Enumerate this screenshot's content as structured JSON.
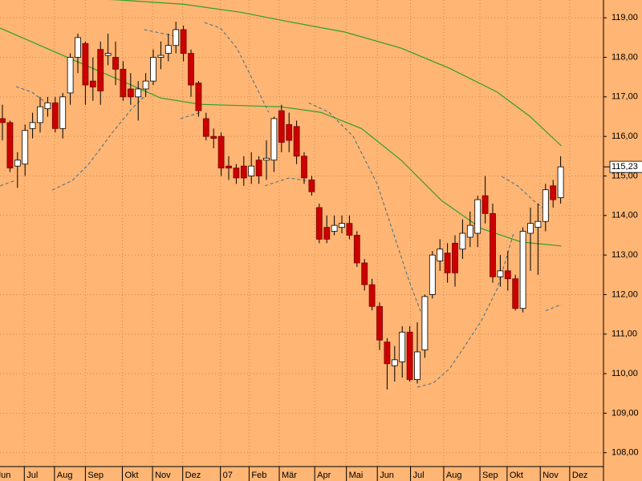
{
  "chart_data": {
    "type": "candlestick",
    "open": [
      116.45,
      116.35,
      115.25,
      115.3,
      116.2,
      116.35,
      116.7,
      116.85,
      116.2,
      117.1,
      118.0,
      118.35,
      117.4,
      118.2,
      118.05,
      118.0,
      117.7,
      117.2,
      117.0,
      117.2,
      117.4,
      118.0,
      118.1,
      118.3,
      118.7,
      118.1,
      117.35,
      116.45,
      116.0,
      116.0,
      115.25,
      115.2,
      115.25,
      115.0,
      115.4,
      115.4,
      115.4,
      116.65,
      116.3,
      116.25,
      115.5,
      114.9,
      114.2,
      113.7,
      113.6,
      113.7,
      113.8,
      113.5,
      112.8,
      112.25,
      111.7,
      110.8,
      110.2,
      110.3,
      111.05,
      109.85,
      110.6,
      112.0,
      112.85,
      113.05,
      113.3,
      113.15,
      113.45,
      113.55,
      114.5,
      114.05,
      112.45,
      112.6,
      112.4,
      111.65,
      113.55,
      113.7,
      113.85,
      114.75,
      114.45
    ],
    "high": [
      116.8,
      116.4,
      115.6,
      116.3,
      116.6,
      117.0,
      117.0,
      117.0,
      117.1,
      118.1,
      118.6,
      118.4,
      118.0,
      118.4,
      118.6,
      118.4,
      117.9,
      117.6,
      117.4,
      117.6,
      118.2,
      118.4,
      118.6,
      118.9,
      118.8,
      118.2,
      117.4,
      116.6,
      116.2,
      116.1,
      115.5,
      115.3,
      115.5,
      115.6,
      115.5,
      115.9,
      116.5,
      116.8,
      116.6,
      116.4,
      115.6,
      115.0,
      114.3,
      114.0,
      114.0,
      114.0,
      114.0,
      113.6,
      112.9,
      112.4,
      111.8,
      110.9,
      110.7,
      111.2,
      111.2,
      111.3,
      112.0,
      113.1,
      113.4,
      113.3,
      113.5,
      113.9,
      114.1,
      114.5,
      115.0,
      114.3,
      113.0,
      113.1,
      112.5,
      113.7,
      114.2,
      114.3,
      114.8,
      114.9,
      115.5
    ],
    "low": [
      115.9,
      115.1,
      114.7,
      115.0,
      115.95,
      116.1,
      116.5,
      116.1,
      115.95,
      116.8,
      117.6,
      116.8,
      116.9,
      116.8,
      117.8,
      117.3,
      116.9,
      116.8,
      116.4,
      117.0,
      117.3,
      117.7,
      117.9,
      118.1,
      117.9,
      117.0,
      116.5,
      115.9,
      115.7,
      115.0,
      114.9,
      114.8,
      114.75,
      114.8,
      114.8,
      114.9,
      115.1,
      115.6,
      115.6,
      115.3,
      114.8,
      114.5,
      113.3,
      113.3,
      113.5,
      113.55,
      113.4,
      112.7,
      112.1,
      111.6,
      110.6,
      109.6,
      109.8,
      109.9,
      109.8,
      109.75,
      110.4,
      111.9,
      112.6,
      112.3,
      112.2,
      112.9,
      113.2,
      113.2,
      113.8,
      112.3,
      112.2,
      112.1,
      111.6,
      111.55,
      112.6,
      112.5,
      113.6,
      114.2,
      114.3
    ],
    "close": [
      116.35,
      115.2,
      115.4,
      116.15,
      116.35,
      116.75,
      116.85,
      116.2,
      117.0,
      118.0,
      118.5,
      117.3,
      117.25,
      117.15,
      118.1,
      117.7,
      117.0,
      117.0,
      117.2,
      117.4,
      118.0,
      118.05,
      118.3,
      118.7,
      118.1,
      117.3,
      116.65,
      116.0,
      115.95,
      115.2,
      115.2,
      114.95,
      114.95,
      115.25,
      115.0,
      115.45,
      116.45,
      115.85,
      115.9,
      115.5,
      114.95,
      114.6,
      113.4,
      113.4,
      113.75,
      113.8,
      113.5,
      112.8,
      112.25,
      111.7,
      110.85,
      110.25,
      110.35,
      111.05,
      109.85,
      110.55,
      111.95,
      113.0,
      113.15,
      112.55,
      112.55,
      113.55,
      113.75,
      114.4,
      114.05,
      112.45,
      112.6,
      112.4,
      111.65,
      113.6,
      113.8,
      113.85,
      114.65,
      114.4,
      115.23
    ],
    "up_color": "#ffffff",
    "down_color": "#cc0000",
    "lines": [
      {
        "color": "#2e9e2e",
        "dashed": false,
        "x": [
          9.3,
          15.6,
          24.1,
          31.6,
          36.9,
          45.4,
          52.9,
          59.3,
          65.6,
          69.9,
          74.1
        ],
        "values": [
          119.5,
          119.45,
          119.34,
          119.14,
          118.94,
          118.64,
          118.23,
          117.72,
          117.12,
          116.51,
          115.76
        ]
      },
      {
        "color": "#2e9e2e",
        "dashed": false,
        "x": [
          -0.3,
          15.6,
          21,
          26.3,
          36.9,
          42.2,
          47.6,
          52.9,
          58.2,
          63.5,
          68.8,
          74.1
        ],
        "values": [
          118.74,
          117.42,
          116.97,
          116.81,
          116.75,
          116.61,
          116.2,
          115.39,
          114.38,
          113.67,
          113.33,
          113.23
        ]
      },
      {
        "color": "#3d6f8c",
        "dashed": true,
        "x": [
          1.8,
          3.9,
          6.1,
          null,
          -0.3,
          1.8,
          null,
          6.6,
          9.3,
          11.4,
          14.6,
          17.2,
          18.8,
          null,
          18.8,
          23.1,
          null,
          23.6,
          26.3,
          null,
          26.8,
          28.9,
          31.1,
          33.2,
          35.3,
          null,
          34.8,
          38,
          40.6,
          null,
          40.6,
          43.3,
          46.5,
          49.7,
          51.8,
          53.9,
          55.5,
          null,
          55,
          57.1,
          59.3,
          61.4,
          63.5,
          65.6,
          67.8,
          null,
          66.2,
          68.3,
          70.4,
          72,
          null,
          72,
          74.1
        ],
        "values": [
          117.26,
          117.12,
          116.81,
          null,
          114.75,
          114.89,
          null,
          114.64,
          114.89,
          115.29,
          116.1,
          116.71,
          117.0,
          null,
          118.7,
          118.53,
          null,
          116.45,
          116.61,
          null,
          118.88,
          118.74,
          118.23,
          117.42,
          116.61,
          null,
          114.75,
          114.95,
          114.87,
          null,
          116.85,
          116.61,
          116.0,
          114.79,
          113.57,
          112.35,
          111.54,
          null,
          109.66,
          109.76,
          110.13,
          110.73,
          111.34,
          112.15,
          113.57,
          null,
          114.99,
          114.75,
          114.38,
          114.14,
          null,
          111.59,
          111.75
        ]
      }
    ],
    "last_price": {
      "value": 115.23,
      "label": "115,23"
    },
    "xlim": [
      -0.32,
      79.68
    ],
    "ylim": [
      107.65,
      119.45
    ],
    "yticks": [
      {
        "value": 108,
        "label": "108,00"
      },
      {
        "value": 109,
        "label": "109,00"
      },
      {
        "value": 110,
        "label": "110,00"
      },
      {
        "value": 111,
        "label": "111,00"
      },
      {
        "value": 112,
        "label": "112,00"
      },
      {
        "value": 113,
        "label": "113,00"
      },
      {
        "value": 114,
        "label": "114,00"
      },
      {
        "value": 115,
        "label": "115,00"
      },
      {
        "value": 116,
        "label": "116,00"
      },
      {
        "value": 117,
        "label": "117,00"
      },
      {
        "value": 118,
        "label": "118,00"
      },
      {
        "value": 119,
        "label": "119,00"
      }
    ],
    "xticks": [
      {
        "value": -1.1,
        "label": "Jun"
      },
      {
        "value": 2.9,
        "label": "Jul"
      },
      {
        "value": 6.9,
        "label": "Aug"
      },
      {
        "value": 11,
        "label": "Sep"
      },
      {
        "value": 15.9,
        "label": "Okt"
      },
      {
        "value": 19.9,
        "label": "Nov"
      },
      {
        "value": 23.9,
        "label": "Dez"
      },
      {
        "value": 28.9,
        "label": "07"
      },
      {
        "value": 32.7,
        "label": "Feb"
      },
      {
        "value": 36.7,
        "label": "Mär"
      },
      {
        "value": 41.4,
        "label": "Apr"
      },
      {
        "value": 45.6,
        "label": "Mai"
      },
      {
        "value": 49.7,
        "label": "Jun"
      },
      {
        "value": 54.1,
        "label": "Jul"
      },
      {
        "value": 58.5,
        "label": "Aug"
      },
      {
        "value": 63.3,
        "label": "Sep"
      },
      {
        "value": 66.9,
        "label": "Okt"
      },
      {
        "value": 71.3,
        "label": "Nov"
      },
      {
        "value": 75.2,
        "label": "Dez"
      }
    ],
    "grid": true
  }
}
